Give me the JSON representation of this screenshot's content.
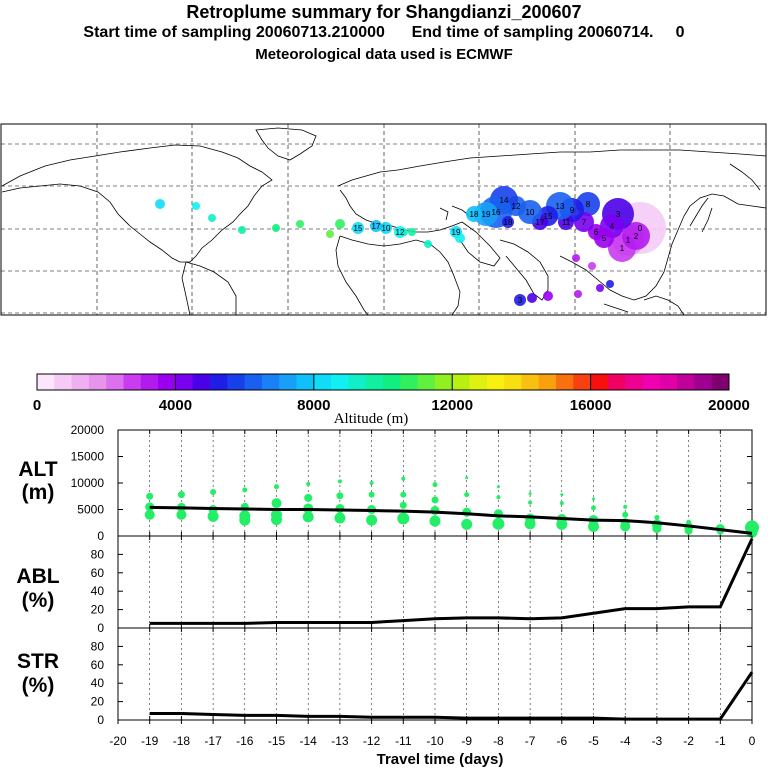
{
  "header": {
    "title": "Retroplume summary for Shangdianzi_200607",
    "subtitle": "Start time of sampling 20060713.210000      End time of sampling 20060714.     0",
    "met_line": "Meteorological data used is ECMWF"
  },
  "colorbar": {
    "label": "Altitude (m)",
    "tick_labels": [
      "0",
      "4000",
      "8000",
      "12000",
      "16000",
      "20000"
    ],
    "tick_values": [
      0,
      4000,
      8000,
      12000,
      16000,
      20000
    ],
    "colors": [
      "#fbe6fb",
      "#f5cbf5",
      "#eeb0ee",
      "#e694ec",
      "#dc70ee",
      "#c93cf0",
      "#b31af0",
      "#9a00f0",
      "#7a00f0",
      "#4a00e8",
      "#1e1ee6",
      "#1840ea",
      "#1a60f0",
      "#1a80f5",
      "#18a0f8",
      "#10c0f8",
      "#10dcf8",
      "#10f0f0",
      "#10f0c8",
      "#10f0a0",
      "#10f080",
      "#30f060",
      "#60f040",
      "#90f020",
      "#b8f010",
      "#e0f010",
      "#f8f010",
      "#f8e010",
      "#f8c010",
      "#f8a010",
      "#f87010",
      "#f84010",
      "#f81010",
      "#f00060",
      "#f00090",
      "#f000b0",
      "#e000a8",
      "#c00098",
      "#a00090",
      "#800070"
    ]
  },
  "map": {
    "trajectory_labels": [
      "18",
      "19",
      "16",
      "14",
      "12",
      "10",
      "17",
      "15",
      "13",
      "11",
      "9",
      "8",
      "7",
      "6",
      "5",
      "4",
      "3",
      "2",
      "1",
      "0"
    ]
  },
  "chart_data": [
    {
      "type": "scatter",
      "panel": "ALT",
      "title": "ALT",
      "ylabel": "(m)",
      "xlim": [
        -20,
        0
      ],
      "ylim": [
        0,
        20000
      ],
      "yticks": [
        0,
        5000,
        10000,
        15000,
        20000
      ],
      "ytick_labels": [
        "0",
        "5000",
        "10000",
        "15000",
        "20000"
      ],
      "mean_line": {
        "x": [
          -19,
          -18,
          -17,
          -16,
          -15,
          -14,
          -13,
          -12,
          -11,
          -10,
          -9,
          -8,
          -7,
          -6,
          -5,
          -4,
          -3,
          -2,
          -1,
          0
        ],
        "y": [
          5400,
          5300,
          5200,
          5100,
          5000,
          5000,
          4900,
          4800,
          4700,
          4500,
          4200,
          3800,
          3600,
          3300,
          3000,
          2900,
          2500,
          1900,
          1200,
          500
        ]
      },
      "clusters": [
        {
          "x": -19,
          "points": [
            [
              7500,
              7
            ],
            [
              5500,
              9
            ],
            [
              4000,
              10
            ]
          ]
        },
        {
          "x": -18,
          "points": [
            [
              7800,
              7
            ],
            [
              5400,
              9
            ],
            [
              4000,
              10
            ]
          ]
        },
        {
          "x": -17,
          "points": [
            [
              8300,
              6
            ],
            [
              5000,
              9
            ],
            [
              3700,
              11
            ]
          ]
        },
        {
          "x": -16,
          "points": [
            [
              8700,
              5
            ],
            [
              5500,
              8
            ],
            [
              3800,
              11
            ],
            [
              3000,
              11
            ]
          ]
        },
        {
          "x": -15,
          "points": [
            [
              9300,
              5
            ],
            [
              6200,
              10
            ],
            [
              4000,
              11
            ],
            [
              3100,
              11
            ]
          ]
        },
        {
          "x": -14,
          "points": [
            [
              9800,
              4
            ],
            [
              7200,
              8
            ],
            [
              5200,
              10
            ],
            [
              3600,
              11
            ]
          ]
        },
        {
          "x": -13,
          "points": [
            [
              10300,
              4
            ],
            [
              7600,
              7
            ],
            [
              5200,
              9
            ],
            [
              3400,
              11
            ]
          ]
        },
        {
          "x": -12,
          "points": [
            [
              10000,
              4
            ],
            [
              7800,
              6
            ],
            [
              5000,
              9
            ],
            [
              3000,
              11
            ]
          ]
        },
        {
          "x": -11,
          "points": [
            [
              10800,
              4
            ],
            [
              7800,
              6
            ],
            [
              5800,
              7
            ],
            [
              3300,
              12
            ]
          ]
        },
        {
          "x": -10,
          "points": [
            [
              9700,
              5
            ],
            [
              6800,
              7
            ],
            [
              4800,
              9
            ],
            [
              2800,
              11
            ]
          ]
        },
        {
          "x": -9,
          "points": [
            [
              11000,
              3
            ],
            [
              7800,
              5
            ],
            [
              4500,
              9
            ],
            [
              2200,
              11
            ]
          ]
        },
        {
          "x": -8,
          "points": [
            [
              9300,
              3
            ],
            [
              7300,
              4
            ],
            [
              4200,
              9
            ],
            [
              2300,
              12
            ]
          ]
        },
        {
          "x": -7,
          "points": [
            [
              8000,
              3
            ],
            [
              6300,
              4
            ],
            [
              3300,
              10
            ],
            [
              2300,
              11
            ]
          ]
        },
        {
          "x": -6,
          "points": [
            [
              7800,
              3
            ],
            [
              6200,
              4
            ],
            [
              3200,
              10
            ],
            [
              2200,
              11
            ]
          ]
        },
        {
          "x": -5,
          "points": [
            [
              7000,
              3
            ],
            [
              5300,
              5
            ],
            [
              3000,
              10
            ],
            [
              1800,
              11
            ]
          ]
        },
        {
          "x": -4,
          "points": [
            [
              5500,
              4
            ],
            [
              4000,
              6
            ],
            [
              2500,
              9
            ],
            [
              1800,
              10
            ]
          ]
        },
        {
          "x": -3,
          "points": [
            [
              3500,
              5
            ],
            [
              2200,
              10
            ],
            [
              1400,
              9
            ]
          ]
        },
        {
          "x": -2,
          "points": [
            [
              2600,
              5
            ],
            [
              1700,
              9
            ],
            [
              1000,
              8
            ]
          ]
        },
        {
          "x": -1,
          "points": [
            [
              1400,
              9
            ],
            [
              900,
              7
            ]
          ]
        },
        {
          "x": 0,
          "points": [
            [
              1600,
              14
            ],
            [
              700,
              11
            ]
          ]
        }
      ],
      "point_color": "#22ee66"
    },
    {
      "type": "line",
      "panel": "ABL",
      "title": "ABL",
      "ylabel": "(%)",
      "xlim": [
        -20,
        0
      ],
      "ylim": [
        0,
        100
      ],
      "yticks": [
        0,
        20,
        40,
        60,
        80
      ],
      "ytick_labels": [
        "0",
        "20",
        "40",
        "60",
        "80"
      ],
      "x": [
        -19,
        -18,
        -17,
        -16,
        -15,
        -14,
        -13,
        -12,
        -11,
        -10,
        -9,
        -8,
        -7,
        -6,
        -5,
        -4,
        -3,
        -2,
        -1,
        0
      ],
      "y": [
        5,
        5,
        5,
        5,
        6,
        6,
        6,
        6,
        8,
        10,
        11,
        11,
        10,
        11,
        16,
        21,
        21,
        23,
        23,
        97
      ]
    },
    {
      "type": "line",
      "panel": "STR",
      "title": "STR",
      "ylabel": "(%)",
      "xlim": [
        -20,
        0
      ],
      "ylim": [
        0,
        100
      ],
      "yticks": [
        0,
        20,
        40,
        60,
        80
      ],
      "ytick_labels": [
        "0",
        "20",
        "40",
        "60",
        "80"
      ],
      "x": [
        -19,
        -18,
        -17,
        -16,
        -15,
        -14,
        -13,
        -12,
        -11,
        -10,
        -9,
        -8,
        -7,
        -6,
        -5,
        -4,
        -3,
        -2,
        -1,
        0
      ],
      "y": [
        7,
        7,
        6,
        5,
        5,
        4,
        4,
        3,
        3,
        3,
        2,
        2,
        2,
        2,
        2,
        1,
        1,
        1,
        1,
        52
      ],
      "xlabel": "Travel time (days)",
      "xticks": [
        -20,
        -19,
        -18,
        -17,
        -16,
        -15,
        -14,
        -13,
        -12,
        -11,
        -10,
        -9,
        -8,
        -7,
        -6,
        -5,
        -4,
        -3,
        -2,
        -1,
        0
      ],
      "xtick_labels": [
        "-20",
        "-19",
        "-18",
        "-17",
        "-16",
        "-15",
        "-14",
        "-13",
        "-12",
        "-11",
        "-10",
        "-9",
        "-8",
        "-7",
        "-6",
        "-5",
        "-4",
        "-3",
        "-2",
        "-1",
        "0"
      ]
    }
  ]
}
